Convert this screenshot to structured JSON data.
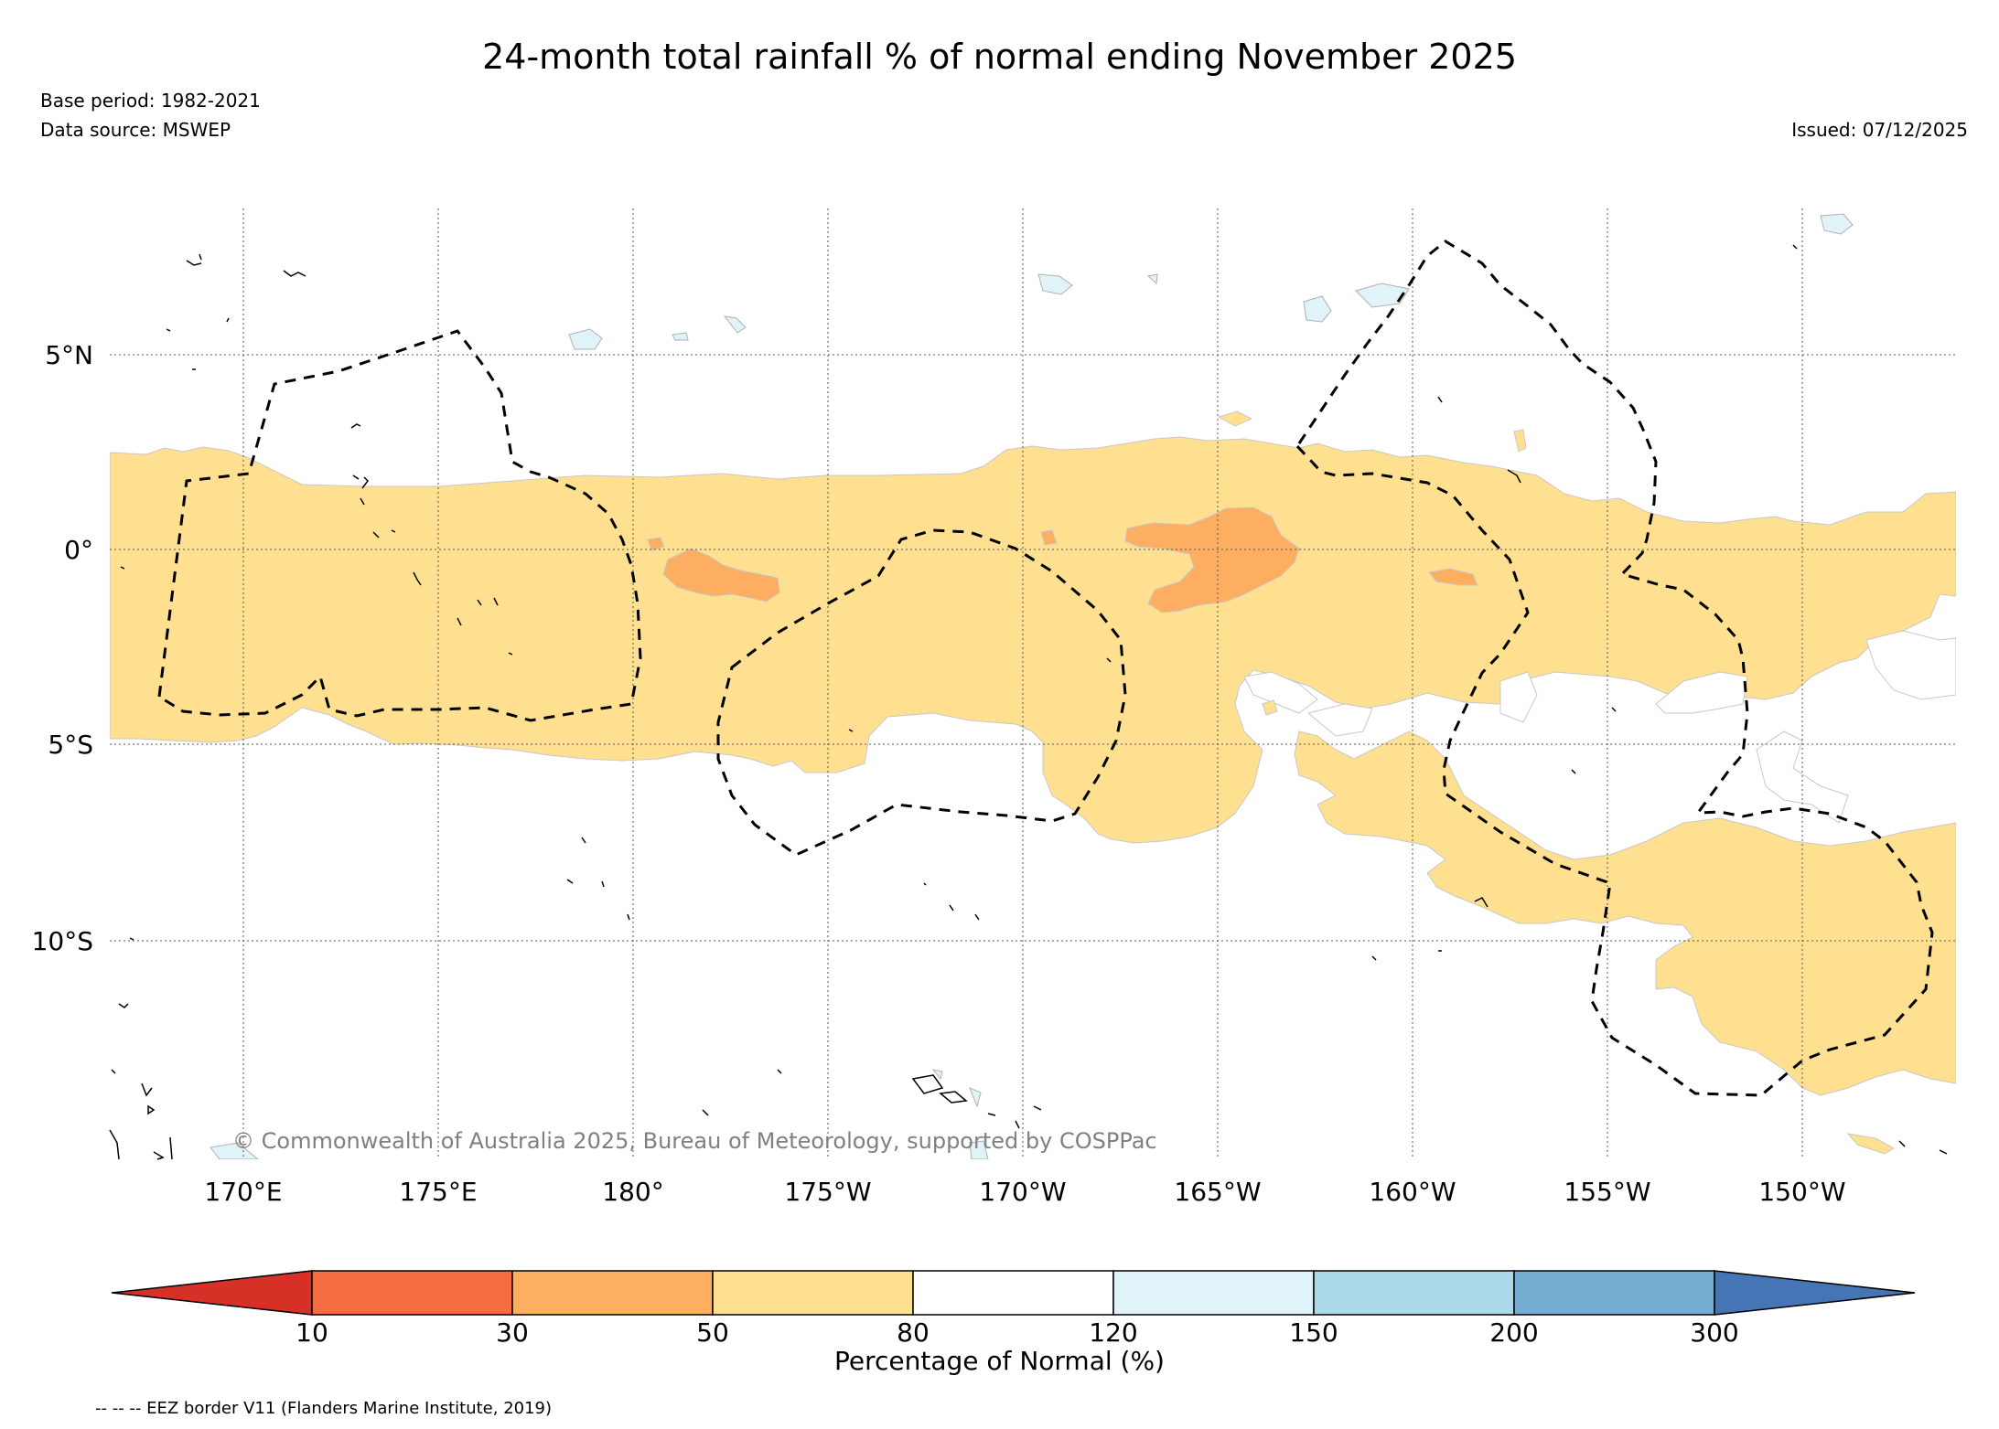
{
  "title": "24-month total rainfall % of normal ending November 2025",
  "base_period": "Base period: 1982-2021",
  "data_source": "Data source: MSWEP",
  "issued": "Issued: 07/12/2025",
  "copyright": "© Commonwealth of Australia 2025, Bureau of Meteorology, supported by COSPPac",
  "map": {
    "lat_labels": [
      "5°N",
      "0°",
      "5°S",
      "10°S"
    ],
    "lon_labels": [
      "170°E",
      "175°E",
      "180°",
      "175°W",
      "170°W",
      "165°W",
      "160°W",
      "155°W",
      "150°W"
    ],
    "extent": {
      "lon_min": 166.6,
      "lon_max": 213.9,
      "lat_min": -15.6,
      "lat_max": 8.7
    }
  },
  "colorbar": {
    "label": "Percentage of Normal (%)",
    "ticks": [
      "10",
      "30",
      "50",
      "80",
      "120",
      "150",
      "200",
      "300"
    ],
    "colors": {
      "lt10": "#d73027",
      "10_30": "#f46d43",
      "30_50": "#fdae61",
      "50_80": "#fee090",
      "80_120": "#ffffff",
      "120_150": "#e0f3f8",
      "150_200": "#abd9e9",
      "200_300": "#74add1",
      "gt300": "#4575b4"
    }
  },
  "legend_note": "-- -- -- EEZ border V11 (Flanders Marine Institute, 2019)"
}
